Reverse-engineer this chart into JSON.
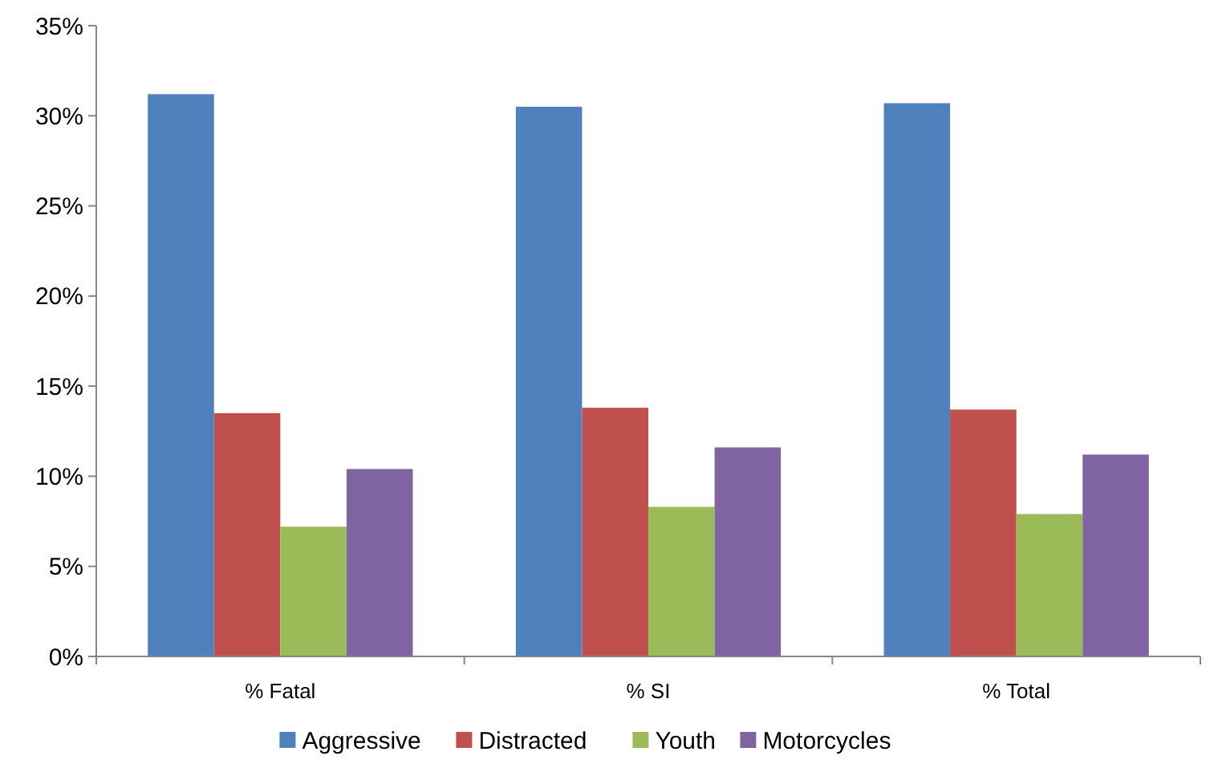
{
  "chart_data": {
    "type": "bar",
    "categories": [
      "% Fatal",
      "% SI",
      "% Total"
    ],
    "series": [
      {
        "name": "Aggressive",
        "color": "#4f81bd",
        "values": [
          31.2,
          30.5,
          30.7
        ]
      },
      {
        "name": "Distracted",
        "color": "#c0504d",
        "values": [
          13.5,
          13.8,
          13.7
        ]
      },
      {
        "name": "Youth",
        "color": "#9bbb59",
        "values": [
          7.2,
          8.3,
          7.9
        ]
      },
      {
        "name": "Motorcycles",
        "color": "#8064a2",
        "values": [
          10.4,
          11.6,
          11.2
        ]
      }
    ],
    "ylim": [
      0,
      35
    ],
    "yticks": [
      {
        "value": 0,
        "label": "0%"
      },
      {
        "value": 5,
        "label": "5%"
      },
      {
        "value": 10,
        "label": "10%"
      },
      {
        "value": 15,
        "label": "15%"
      },
      {
        "value": 20,
        "label": "20%"
      },
      {
        "value": 25,
        "label": "25%"
      },
      {
        "value": 30,
        "label": "30%"
      },
      {
        "value": 35,
        "label": "35%"
      }
    ],
    "legend": "bottom",
    "grid": false
  }
}
